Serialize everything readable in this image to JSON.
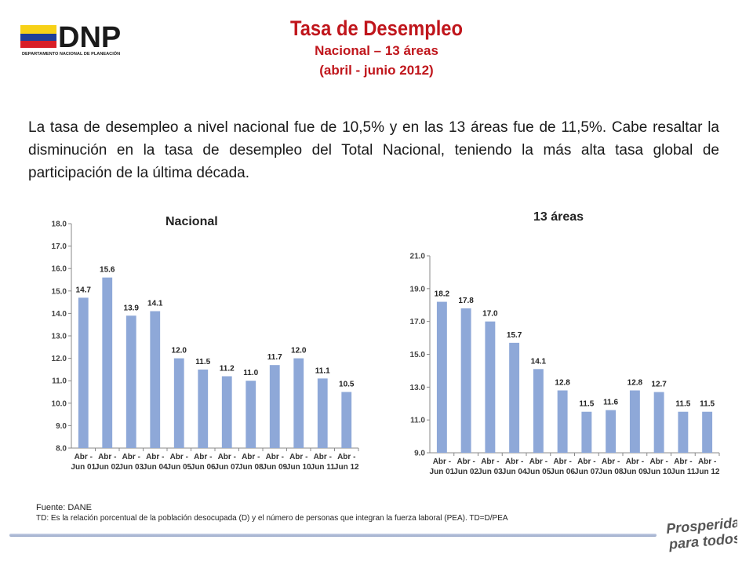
{
  "header": {
    "logo_text": "DNP",
    "logo_subtext": "DEPARTAMENTO NACIONAL DE PLANEACIÓN",
    "title": "Tasa de Desempleo",
    "subtitle1": "Nacional – 13 áreas",
    "subtitle2": "(abril -  junio 2012)"
  },
  "summary": "La tasa de desempleo a nivel nacional fue de 10,5% y en las 13 áreas fue de 11,5%. Cabe resaltar la disminución en la tasa de desempleo del Total Nacional, teniendo la más alta tasa global de participación de la última década.",
  "footer": {
    "source": "Fuente: DANE",
    "note": "TD:  Es la relación porcentual de la población desocupada (D) y el número de personas que integran la fuerza laboral (PEA). TD=D/PEA",
    "slogan_line1": "Prosperidad",
    "slogan_line2": "para todos"
  },
  "colors": {
    "bar": "#8ea8d8",
    "title_red": "#c0161c",
    "logo_yellow": "#f7d117",
    "logo_blue": "#1f3f98",
    "logo_red": "#d81e27"
  },
  "chart_data": [
    {
      "type": "bar",
      "title": "Nacional",
      "categories": [
        [
          "Abr -",
          "Jun 01"
        ],
        [
          "Abr -",
          "Jun 02"
        ],
        [
          "Abr -",
          "Jun 03"
        ],
        [
          "Abr -",
          "Jun 04"
        ],
        [
          "Abr -",
          "Jun 05"
        ],
        [
          "Abr -",
          "Jun 06"
        ],
        [
          "Abr -",
          "Jun 07"
        ],
        [
          "Abr -",
          "Jun 08"
        ],
        [
          "Abr -",
          "Jun 09"
        ],
        [
          "Abr -",
          "Jun 10"
        ],
        [
          "Abr -",
          "Jun 11"
        ],
        [
          "Abr -",
          "Jun 12"
        ]
      ],
      "values": [
        14.7,
        15.6,
        13.9,
        14.1,
        12.0,
        11.5,
        11.2,
        11.0,
        11.7,
        12.0,
        11.1,
        10.5
      ],
      "value_labels": [
        "14.7",
        "15.6",
        "13.9",
        "14.1",
        "12.0",
        "11.5",
        "11.2",
        "11.0",
        "11.7",
        "12.0",
        "11.1",
        "10.5"
      ],
      "yticks": [
        "8.0",
        "9.0",
        "10.0",
        "11.0",
        "12.0",
        "13.0",
        "14.0",
        "15.0",
        "16.0",
        "17.0",
        "18.0"
      ],
      "ylim": [
        8,
        18
      ],
      "xlabel": "",
      "ylabel": "",
      "grid": false
    },
    {
      "type": "bar",
      "title": "13 áreas",
      "categories": [
        [
          "Abr -",
          "Jun 01"
        ],
        [
          "Abr -",
          "Jun 02"
        ],
        [
          "Abr -",
          "Jun 03"
        ],
        [
          "Abr -",
          "Jun 04"
        ],
        [
          "Abr -",
          "Jun 05"
        ],
        [
          "Abr -",
          "Jun 06"
        ],
        [
          "Abr -",
          "Jun 07"
        ],
        [
          "Abr -",
          "Jun 08"
        ],
        [
          "Abr -",
          "Jun 09"
        ],
        [
          "Abr -",
          "Jun 10"
        ],
        [
          "Abr -",
          "Jun 11"
        ],
        [
          "Abr -",
          "Jun 12"
        ]
      ],
      "values": [
        18.2,
        17.8,
        17.0,
        15.7,
        14.1,
        12.8,
        11.5,
        11.6,
        12.8,
        12.7,
        11.5,
        11.5
      ],
      "value_labels": [
        "18.2",
        "17.8",
        "17.0",
        "15.7",
        "14.1",
        "12.8",
        "11.5",
        "11.6",
        "12.8",
        "12.7",
        "11.5",
        "11.5"
      ],
      "yticks": [
        "9.0",
        "11.0",
        "13.0",
        "15.0",
        "17.0",
        "19.0",
        "21.0"
      ],
      "ylim": [
        9,
        21
      ],
      "xlabel": "",
      "ylabel": "",
      "grid": false
    }
  ]
}
